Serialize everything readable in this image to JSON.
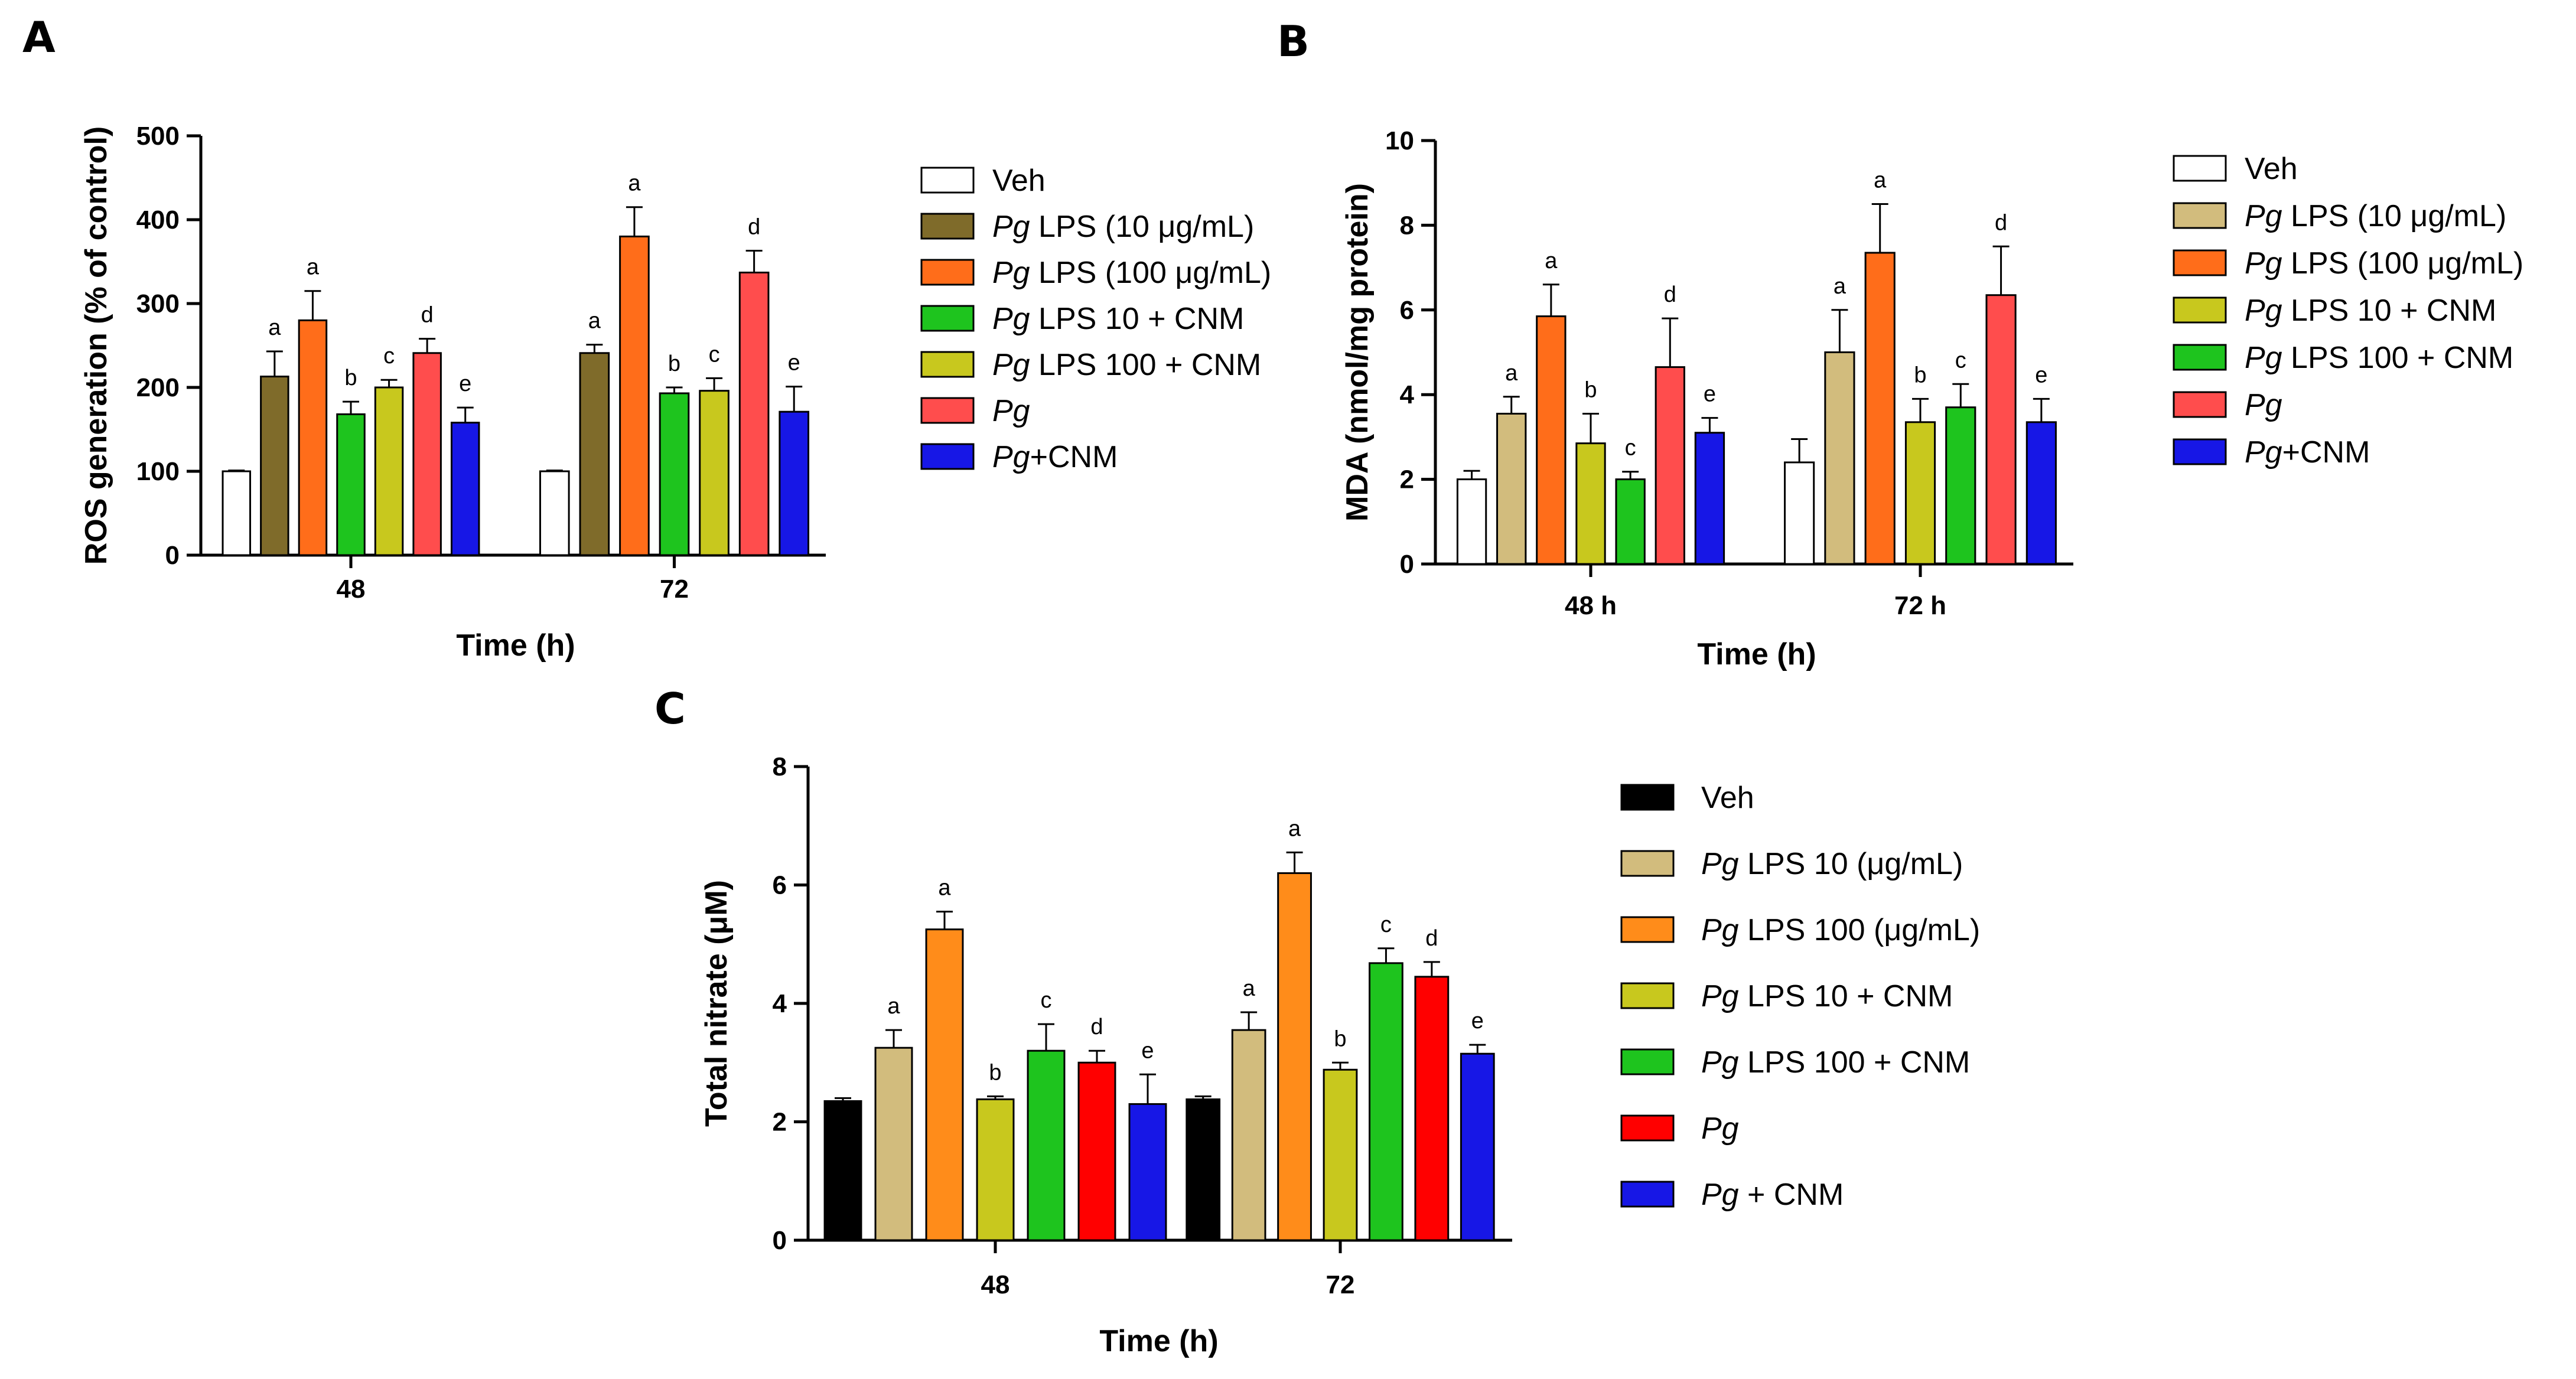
{
  "chart_data": [
    {
      "panel": "A",
      "type": "bar",
      "xlabel": "Time (h)",
      "ylabel": "ROS generation (% of control)",
      "ylim": [
        0,
        500
      ],
      "yticks": [
        "0",
        "100",
        "200",
        "300",
        "400",
        "500"
      ],
      "categories": [
        "48",
        "72"
      ],
      "legend_position": "right",
      "series": [
        {
          "name": "Veh",
          "italic": "",
          "color": "#ffffff",
          "values": [
            100,
            100
          ],
          "errors": [
            1,
            1
          ],
          "labels": [
            "",
            ""
          ]
        },
        {
          "name": " LPS (10 μg/mL)",
          "italic": "Pg",
          "color": "#7f6b2a",
          "values": [
            213,
            241
          ],
          "errors": [
            30,
            10
          ],
          "labels": [
            "a",
            "a"
          ]
        },
        {
          "name": " LPS (100 μg/mL)",
          "italic": "Pg",
          "color": "#ff6d1a",
          "values": [
            280,
            380
          ],
          "errors": [
            35,
            35
          ],
          "labels": [
            "a",
            "a"
          ]
        },
        {
          "name": " LPS 10 + CNM",
          "italic": "Pg",
          "color": "#1ec41e",
          "values": [
            168,
            193
          ],
          "errors": [
            15,
            7
          ],
          "labels": [
            "b",
            "b"
          ]
        },
        {
          "name": " LPS 100 + CNM",
          "italic": "Pg",
          "color": "#c8c81e",
          "values": [
            200,
            196
          ],
          "errors": [
            9,
            15
          ],
          "labels": [
            "c",
            "c"
          ]
        },
        {
          "name": "",
          "italic": "Pg",
          "color": "#ff4d4d",
          "values": [
            241,
            337
          ],
          "errors": [
            17,
            26
          ],
          "labels": [
            "d",
            "d"
          ]
        },
        {
          "name": "+CNM",
          "italic": "Pg",
          "color": "#1717e6",
          "values": [
            158,
            171
          ],
          "errors": [
            18,
            30
          ],
          "labels": [
            "e",
            "e"
          ]
        }
      ]
    },
    {
      "panel": "B",
      "type": "bar",
      "xlabel": "Time (h)",
      "ylabel": "MDA (nmol/mg protein)",
      "ylim": [
        0,
        10
      ],
      "yticks": [
        "0",
        "2",
        "4",
        "6",
        "8",
        "10"
      ],
      "categories": [
        "48 h",
        "72 h"
      ],
      "legend_position": "right",
      "series": [
        {
          "name": "Veh",
          "italic": "",
          "color": "#ffffff",
          "values": [
            2.0,
            2.4
          ],
          "errors": [
            0.2,
            0.55
          ],
          "labels": [
            "",
            ""
          ]
        },
        {
          "name": " LPS (10 μg/mL)",
          "italic": "Pg",
          "color": "#d2bc7d",
          "values": [
            3.55,
            5.0
          ],
          "errors": [
            0.4,
            1.0
          ],
          "labels": [
            "a",
            "a"
          ]
        },
        {
          "name": " LPS (100 μg/mL)",
          "italic": "Pg",
          "color": "#ff6d1a",
          "values": [
            5.85,
            7.35
          ],
          "errors": [
            0.75,
            1.15
          ],
          "labels": [
            "a",
            "a"
          ]
        },
        {
          "name": " LPS 10 + CNM",
          "italic": "Pg",
          "color": "#c8c81e",
          "values": [
            2.85,
            3.35
          ],
          "errors": [
            0.7,
            0.55
          ],
          "labels": [
            "b",
            "b"
          ]
        },
        {
          "name": " LPS 100 + CNM",
          "italic": "Pg",
          "color": "#1ec41e",
          "values": [
            2.0,
            3.7
          ],
          "errors": [
            0.18,
            0.55
          ],
          "labels": [
            "c",
            "c"
          ]
        },
        {
          "name": "",
          "italic": "Pg",
          "color": "#ff4d4d",
          "values": [
            4.65,
            6.35
          ],
          "errors": [
            1.15,
            1.15
          ],
          "labels": [
            "d",
            "d"
          ]
        },
        {
          "name": "+CNM",
          "italic": "Pg",
          "color": "#1717e6",
          "values": [
            3.1,
            3.35
          ],
          "errors": [
            0.35,
            0.55
          ],
          "labels": [
            "e",
            "e"
          ]
        }
      ]
    },
    {
      "panel": "C",
      "type": "bar",
      "xlabel": "Time (h)",
      "ylabel": "Total nitrate (μM)",
      "ylim": [
        0,
        8
      ],
      "yticks": [
        "0",
        "2",
        "4",
        "6",
        "8"
      ],
      "categories": [
        "48",
        "72"
      ],
      "legend_position": "right",
      "series": [
        {
          "name": "Veh",
          "italic": "",
          "color": "#000000",
          "values": [
            2.35,
            2.38
          ],
          "errors": [
            0.05,
            0.05
          ],
          "labels": [
            "",
            ""
          ]
        },
        {
          "name": " LPS 10 (μg/mL)",
          "italic": "Pg",
          "color": "#d2bc7d",
          "values": [
            3.25,
            3.55
          ],
          "errors": [
            0.3,
            0.3
          ],
          "labels": [
            "a",
            "a"
          ]
        },
        {
          "name": " LPS 100 (μg/mL)",
          "italic": "Pg",
          "color": "#ff8c1a",
          "values": [
            5.25,
            6.2
          ],
          "errors": [
            0.3,
            0.35
          ],
          "labels": [
            "a",
            "a"
          ]
        },
        {
          "name": " LPS 10 + CNM",
          "italic": "Pg",
          "color": "#c8c81e",
          "values": [
            2.38,
            2.88
          ],
          "errors": [
            0.05,
            0.12
          ],
          "labels": [
            "b",
            "b"
          ]
        },
        {
          "name": " LPS 100 + CNM",
          "italic": "Pg",
          "color": "#1ec41e",
          "values": [
            3.2,
            4.68
          ],
          "errors": [
            0.45,
            0.25
          ],
          "labels": [
            "c",
            "c"
          ]
        },
        {
          "name": "",
          "italic": "Pg",
          "color": "#ff0000",
          "values": [
            3.0,
            4.45
          ],
          "errors": [
            0.2,
            0.25
          ],
          "labels": [
            "d",
            "d"
          ]
        },
        {
          "name": " + CNM",
          "italic": "Pg",
          "color": "#1717e6",
          "values": [
            2.3,
            3.15
          ],
          "errors": [
            0.5,
            0.15
          ],
          "labels": [
            "e",
            "e"
          ]
        }
      ]
    }
  ]
}
